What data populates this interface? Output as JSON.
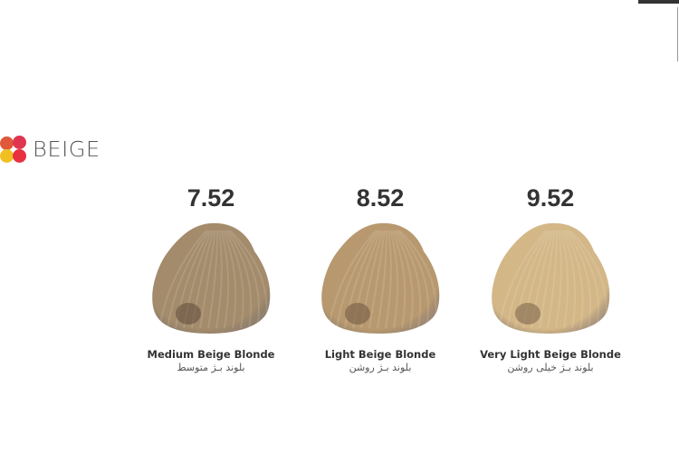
{
  "brand": {
    "label": "BEIGE"
  },
  "shades": [
    {
      "code": "7.52",
      "name": "Medium Beige Blonde",
      "name_fa": "بلوند بـژ متوسط",
      "color": "#a38b6b",
      "dark": "#5e4a3a"
    },
    {
      "code": "8.52",
      "name": "Light Beige Blonde",
      "name_fa": "بلوند بـژ روشن",
      "color": "#b8996f",
      "dark": "#6e5540"
    },
    {
      "code": "9.52",
      "name": "Very Light Beige Blonde",
      "name_fa": "بلوند بـژ خیلی روشن",
      "color": "#d3b787",
      "dark": "#7a6048"
    }
  ]
}
